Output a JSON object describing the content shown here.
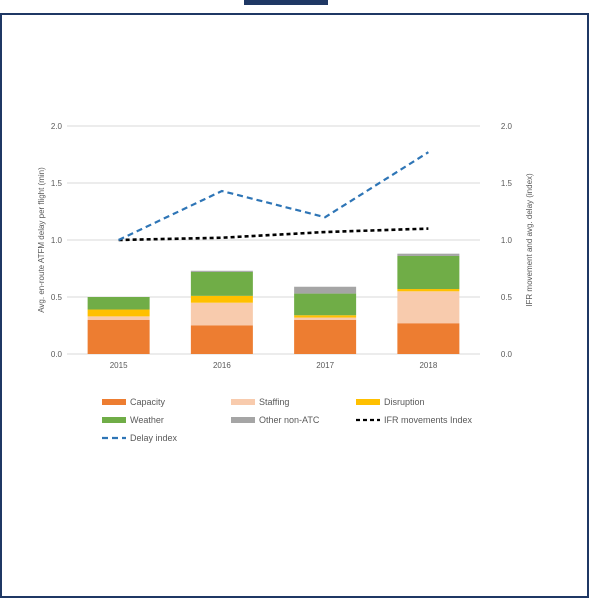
{
  "colors": {
    "capacity": "#ED7D31",
    "staffing": "#F8CBAD",
    "disruption": "#FFC000",
    "weather": "#70AD47",
    "other_non_atc": "#A5A5A5",
    "ifr_movements_index": "#000000",
    "delay_index": "#2E75B6",
    "frame": "#1f3864"
  },
  "chart_data": {
    "type": "bar",
    "stacked": true,
    "categories": [
      "2015",
      "2016",
      "2017",
      "2018"
    ],
    "ylabel": "Avg. en-route ATFM delay per flight (min)",
    "y2label": "IFR movement and avg. delay (index)",
    "ylim": [
      0,
      2.0
    ],
    "y2lim": [
      0,
      2.0
    ],
    "yticks": [
      "0.0",
      "0.5",
      "1.0",
      "1.5",
      "2.0"
    ],
    "grid": true,
    "legend_position": "bottom",
    "series": [
      {
        "name": "Capacity",
        "kind": "bar",
        "values": [
          0.3,
          0.25,
          0.3,
          0.27
        ]
      },
      {
        "name": "Staffing",
        "kind": "bar",
        "values": [
          0.03,
          0.2,
          0.02,
          0.28
        ]
      },
      {
        "name": "Disruption",
        "kind": "bar",
        "values": [
          0.06,
          0.06,
          0.02,
          0.02
        ]
      },
      {
        "name": "Weather",
        "kind": "bar",
        "values": [
          0.11,
          0.21,
          0.19,
          0.29
        ]
      },
      {
        "name": "Other non-ATC",
        "kind": "bar",
        "values": [
          0.0,
          0.01,
          0.06,
          0.02
        ]
      },
      {
        "name": "IFR movements Index",
        "kind": "line",
        "axis": "right",
        "values": [
          1.0,
          1.02,
          1.07,
          1.1
        ]
      },
      {
        "name": "Delay index",
        "kind": "line",
        "axis": "right",
        "values": [
          1.0,
          1.43,
          1.2,
          1.77
        ]
      }
    ]
  }
}
